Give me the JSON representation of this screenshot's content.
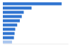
{
  "chart_data": {
    "type": "bar",
    "orientation": "horizontal",
    "categories": [
      null,
      null,
      null,
      null,
      null,
      null,
      null,
      null,
      null,
      null
    ],
    "values": [
      90,
      44,
      32,
      29,
      26,
      22,
      19,
      18,
      17,
      14
    ],
    "colors": [
      "#2f74d0",
      "#2f74d0",
      "#2f74d0",
      "#2f74d0",
      "#2f74d0",
      "#2f74d0",
      "#2f74d0",
      "#2f74d0",
      "#2f74d0",
      "#a8c5ee"
    ],
    "xlim": [
      0,
      100
    ],
    "tick_labels": false,
    "grid": false
  }
}
